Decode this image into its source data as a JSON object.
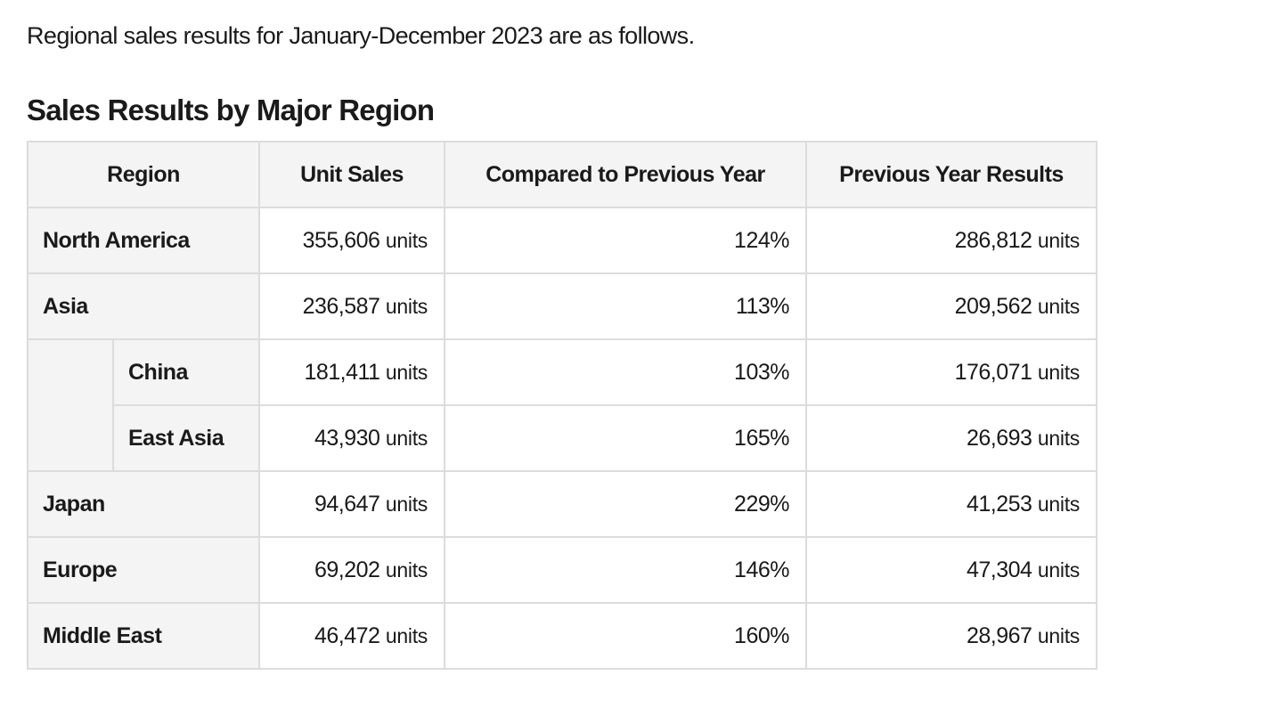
{
  "intro_text": "Regional sales results for January-December 2023 are as follows.",
  "section_title": "Sales Results by Major Region",
  "table": {
    "headers": {
      "region": "Region",
      "unit_sales": "Unit Sales",
      "compared": "Compared to Previous Year",
      "previous": "Previous Year Results"
    },
    "unit_suffix": "units",
    "rows": [
      {
        "region": "North America",
        "unit_sales": "355,606",
        "compared": "124%",
        "previous": "286,812"
      },
      {
        "region": "Asia",
        "unit_sales": "236,587",
        "compared": "113%",
        "previous": "209,562"
      },
      {
        "region": "China",
        "unit_sales": "181,411",
        "compared": "103%",
        "previous": "176,071"
      },
      {
        "region": "East Asia",
        "unit_sales": "43,930",
        "compared": "165%",
        "previous": "26,693"
      },
      {
        "region": "Japan",
        "unit_sales": "94,647",
        "compared": "229%",
        "previous": "41,253"
      },
      {
        "region": "Europe",
        "unit_sales": "69,202",
        "compared": "146%",
        "previous": "47,304"
      },
      {
        "region": "Middle East",
        "unit_sales": "46,472",
        "compared": "160%",
        "previous": "28,967"
      }
    ]
  }
}
